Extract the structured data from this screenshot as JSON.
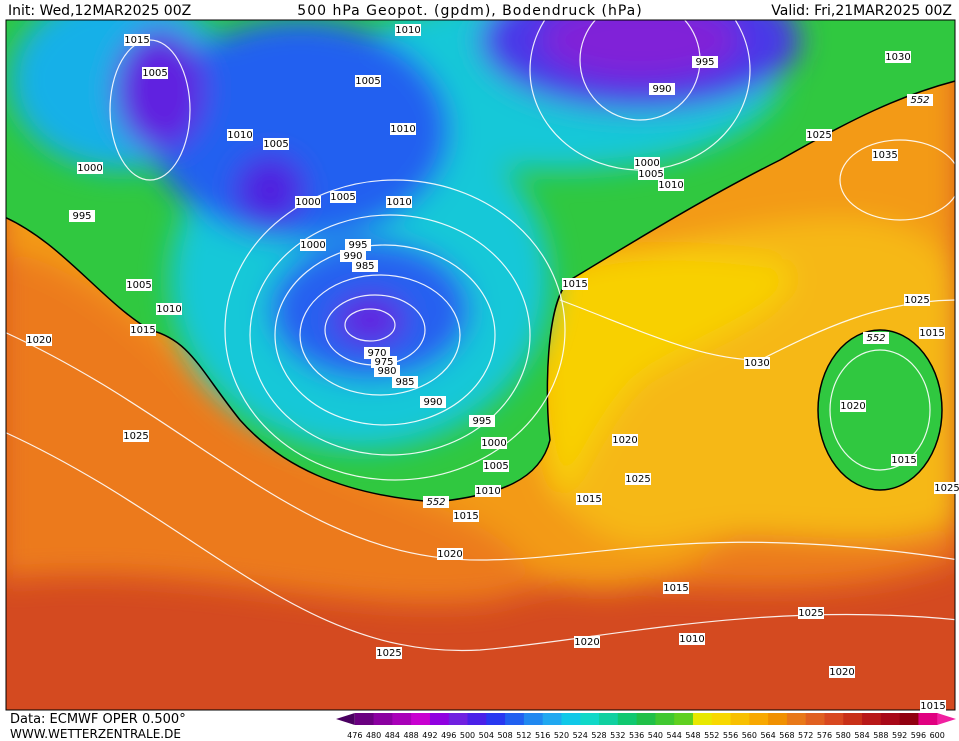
{
  "header": {
    "init": "Init: Wed,12MAR2025 00Z",
    "title": "500 hPa Geopot. (gpdm), Bodendruck (hPa)",
    "valid": "Valid: Fri,21MAR2025 00Z"
  },
  "isobar_labels": [
    1015,
    1005,
    1010,
    1005,
    1010,
    995,
    990,
    1030,
    552,
    1025,
    1035,
    1010,
    1005,
    1000,
    1000,
    1005,
    1010,
    1000,
    1005,
    1010,
    995,
    1000,
    995,
    990,
    985,
    1015,
    1005,
    1010,
    1015,
    1020,
    552,
    1025,
    1015,
    970,
    975,
    980,
    985,
    1030,
    990,
    1020,
    995,
    1000,
    1020,
    1025,
    1005,
    1015,
    1025,
    1010,
    552,
    1015,
    1025,
    1015,
    1020,
    1015,
    1025,
    1010,
    1020,
    1025,
    1020,
    1015
  ],
  "colorbar": {
    "ticks": [
      476,
      480,
      484,
      488,
      492,
      496,
      500,
      504,
      508,
      512,
      516,
      520,
      524,
      528,
      532,
      536,
      540,
      544,
      548,
      552,
      556,
      560,
      564,
      568,
      572,
      576,
      580,
      584,
      588,
      592,
      596,
      600
    ],
    "colors": [
      "#4a0060",
      "#6a0080",
      "#8a00a0",
      "#a800b8",
      "#c800d0",
      "#9000e0",
      "#7020e0",
      "#4a20e8",
      "#2838f0",
      "#2060f0",
      "#2088f0",
      "#20a8f0",
      "#10c8e8",
      "#10d8c8",
      "#10d0a0",
      "#10c870",
      "#20c048",
      "#40c830",
      "#60d020",
      "#e8e800",
      "#f8d800",
      "#f8c000",
      "#f8a800",
      "#f09000",
      "#e87818",
      "#e06020",
      "#d84820",
      "#c83018",
      "#b81818",
      "#a80818",
      "#900010",
      "#e00080",
      "#f020a0"
    ]
  },
  "footer": {
    "source": "Data: ECMWF OPER 0.500°",
    "site": "WWW.WETTERZENTRALE.DE"
  }
}
